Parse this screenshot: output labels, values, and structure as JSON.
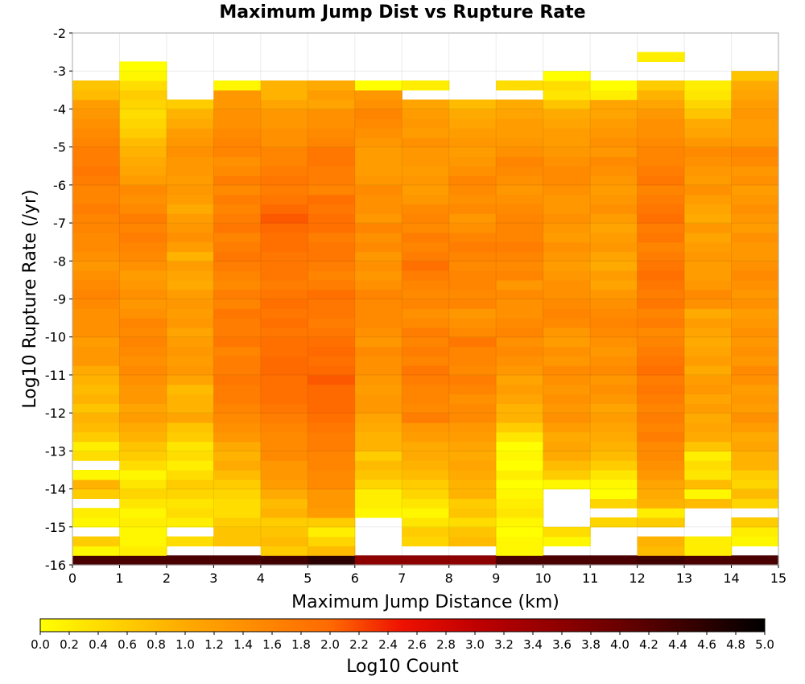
{
  "chart_data": {
    "type": "heatmap",
    "title": "Maximum Jump Dist vs Rupture Rate",
    "xlabel": "Maximum Jump Distance (km)",
    "ylabel": "Log10 Rupture Rate (/yr)",
    "xlim": [
      0,
      15
    ],
    "ylim": [
      -16,
      -2
    ],
    "x_ticks": [
      "0",
      "1",
      "2",
      "3",
      "4",
      "5",
      "6",
      "7",
      "8",
      "9",
      "10",
      "11",
      "12",
      "13",
      "14",
      "15"
    ],
    "y_ticks": [
      "-2",
      "-3",
      "-4",
      "-5",
      "-6",
      "-7",
      "-8",
      "-9",
      "-10",
      "-11",
      "-12",
      "-13",
      "-14",
      "-15",
      "-16"
    ],
    "x_bin_width": 1,
    "y_bin_height": 0.25,
    "y_bin_start": -16,
    "grid": true,
    "colorbar": {
      "label": "Log10 Count",
      "range": [
        0.0,
        5.0
      ],
      "ticks": [
        "0.0",
        "0.2",
        "0.4",
        "0.6",
        "0.8",
        "1.0",
        "1.2",
        "1.4",
        "1.6",
        "1.8",
        "2.0",
        "2.2",
        "2.4",
        "2.6",
        "2.8",
        "3.0",
        "3.2",
        "3.4",
        "3.6",
        "3.8",
        "4.0",
        "4.2",
        "4.4",
        "4.6",
        "4.8",
        "5.0"
      ],
      "stops": [
        {
          "v": 0.0,
          "color": "#ffff00"
        },
        {
          "v": 1.0,
          "color": "#ffaa00"
        },
        {
          "v": 2.0,
          "color": "#ff6a00"
        },
        {
          "v": 2.5,
          "color": "#ee1100"
        },
        {
          "v": 3.0,
          "color": "#c00000"
        },
        {
          "v": 4.0,
          "color": "#6a0000"
        },
        {
          "v": 5.0,
          "color": "#000000"
        }
      ]
    },
    "columns": [
      {
        "x": 0,
        "values": [
          4.3,
          0.1,
          0.6,
          null,
          0.1,
          0.2,
          null,
          0.6,
          0.9,
          0.1,
          null,
          0.4,
          0.2,
          0.6,
          0.8,
          0.9,
          0.7,
          0.9,
          0.8,
          0.9,
          1.0,
          1.3,
          1.3,
          1.2,
          1.4,
          1.4,
          1.4,
          1.5,
          1.6,
          1.5,
          1.4,
          1.3,
          1.4,
          1.5,
          1.5,
          1.6,
          1.6,
          1.7,
          1.6,
          1.6,
          1.7,
          1.8,
          1.7,
          1.7,
          1.6,
          1.5,
          1.4,
          1.3,
          1.2,
          0.8,
          0.7,
          null,
          null,
          null,
          null,
          null
        ]
      },
      {
        "x": 1,
        "values": [
          4.3,
          0.2,
          0.1,
          0.1,
          0.2,
          0.1,
          0.3,
          0.5,
          0.3,
          0.1,
          0.4,
          0.6,
          0.7,
          0.9,
          1.0,
          1.2,
          1.1,
          1.3,
          1.3,
          1.4,
          1.5,
          1.4,
          1.5,
          1.6,
          1.5,
          1.6,
          1.4,
          1.3,
          1.4,
          1.3,
          1.2,
          1.4,
          1.5,
          1.6,
          1.7,
          1.6,
          1.7,
          1.5,
          1.4,
          1.5,
          1.2,
          1.1,
          1.0,
          0.9,
          0.8,
          0.6,
          0.5,
          0.4,
          0.5,
          0.6,
          0.4,
          0.1,
          0.0,
          null,
          null,
          null
        ]
      },
      {
        "x": 2,
        "values": [
          4.3,
          null,
          0.4,
          null,
          0.2,
          0.4,
          0.3,
          0.5,
          0.6,
          0.4,
          0.2,
          0.4,
          0.3,
          0.6,
          0.7,
          1.1,
          0.9,
          0.9,
          0.8,
          1.1,
          1.3,
          1.2,
          1.3,
          1.2,
          1.1,
          1.3,
          1.2,
          1.3,
          1.2,
          1.0,
          1.1,
          1.2,
          0.9,
          1.2,
          1.4,
          1.3,
          1.2,
          1.0,
          1.2,
          1.3,
          1.2,
          1.3,
          1.3,
          1.4,
          1.3,
          1.2,
          1.0,
          0.9,
          0.6,
          null,
          null,
          null,
          null,
          null,
          null,
          null
        ]
      },
      {
        "x": 3,
        "values": [
          4.3,
          null,
          0.7,
          0.7,
          0.6,
          0.4,
          0.4,
          0.5,
          0.6,
          0.8,
          1.0,
          0.9,
          1.0,
          1.3,
          1.4,
          1.5,
          1.6,
          1.7,
          1.7,
          1.8,
          1.7,
          1.7,
          1.6,
          1.8,
          1.7,
          1.7,
          1.8,
          1.6,
          1.7,
          1.5,
          1.6,
          1.7,
          1.8,
          1.7,
          1.6,
          1.8,
          1.7,
          1.6,
          1.7,
          1.5,
          1.7,
          1.5,
          1.4,
          1.6,
          1.6,
          1.5,
          1.4,
          1.4,
          1.3,
          1.3,
          0.1,
          null,
          null,
          null,
          null,
          null
        ]
      },
      {
        "x": 4,
        "values": [
          4.4,
          0.6,
          0.8,
          0.7,
          0.6,
          0.9,
          0.8,
          1.0,
          1.2,
          1.3,
          1.3,
          1.5,
          1.5,
          1.5,
          1.6,
          1.7,
          1.8,
          1.9,
          1.9,
          1.9,
          2.0,
          2.0,
          1.9,
          1.9,
          1.8,
          1.9,
          1.8,
          1.9,
          1.8,
          1.7,
          1.8,
          1.8,
          1.8,
          1.9,
          1.9,
          2.0,
          2.1,
          2.0,
          1.8,
          1.7,
          1.8,
          1.7,
          1.6,
          1.6,
          1.4,
          1.4,
          1.3,
          1.3,
          1.1,
          0.9,
          0.9,
          null,
          null,
          null,
          null,
          null
        ]
      },
      {
        "x": 5,
        "values": [
          4.6,
          0.8,
          0.5,
          0.2,
          0.6,
          1.2,
          1.3,
          1.3,
          1.5,
          1.5,
          1.6,
          1.6,
          1.7,
          1.7,
          1.8,
          1.9,
          2.0,
          2.0,
          2.0,
          2.1,
          2.0,
          1.9,
          2.0,
          1.9,
          1.8,
          1.7,
          1.8,
          1.8,
          1.9,
          1.7,
          1.6,
          1.7,
          1.8,
          1.8,
          1.7,
          1.9,
          1.9,
          1.8,
          1.9,
          1.6,
          1.7,
          1.7,
          1.8,
          1.8,
          1.6,
          1.5,
          1.4,
          1.4,
          1.1,
          1.2,
          1.0,
          null,
          null,
          null,
          null,
          null
        ]
      },
      {
        "x": 6,
        "values": [
          3.6,
          null,
          null,
          null,
          null,
          0.1,
          0.2,
          0.2,
          0.5,
          0.7,
          0.8,
          0.6,
          0.9,
          0.9,
          1.0,
          1.1,
          1.3,
          1.3,
          1.2,
          1.3,
          1.4,
          1.4,
          1.5,
          1.3,
          1.4,
          1.5,
          1.5,
          1.5,
          1.6,
          1.4,
          1.3,
          1.4,
          1.3,
          1.5,
          1.4,
          1.6,
          1.3,
          1.4,
          1.4,
          1.5,
          1.3,
          1.2,
          1.2,
          1.2,
          1.3,
          1.4,
          1.5,
          1.6,
          1.4,
          1.3,
          0.0,
          null,
          null,
          null,
          null,
          null
        ]
      },
      {
        "x": 7,
        "values": [
          3.6,
          null,
          0.5,
          0.6,
          0.3,
          0.1,
          0.3,
          0.5,
          0.6,
          0.8,
          0.9,
          1.0,
          1.0,
          1.2,
          1.3,
          1.7,
          1.5,
          1.6,
          1.6,
          1.7,
          1.8,
          1.6,
          1.7,
          1.6,
          1.7,
          1.5,
          1.4,
          1.6,
          1.5,
          1.6,
          1.7,
          1.9,
          1.7,
          1.6,
          1.7,
          1.5,
          1.6,
          1.5,
          1.3,
          1.2,
          1.3,
          1.2,
          1.3,
          1.3,
          1.4,
          1.2,
          1.3,
          1.2,
          1.1,
          null,
          0.2,
          null,
          null,
          null,
          null,
          null
        ]
      },
      {
        "x": 8,
        "values": [
          3.6,
          null,
          0.8,
          0.7,
          0.4,
          0.7,
          0.6,
          0.9,
          0.9,
          1.0,
          1.1,
          1.0,
          1.1,
          1.2,
          1.3,
          1.5,
          1.5,
          1.4,
          1.6,
          1.7,
          1.5,
          1.6,
          1.6,
          1.8,
          1.5,
          1.4,
          1.3,
          1.6,
          1.5,
          1.6,
          1.6,
          1.5,
          1.6,
          1.7,
          1.6,
          1.4,
          1.3,
          1.5,
          1.4,
          1.5,
          1.6,
          1.4,
          1.3,
          1.2,
          1.3,
          1.2,
          1.1,
          1.0,
          0.8,
          null,
          null,
          null,
          null,
          null,
          null,
          null
        ]
      },
      {
        "x": 9,
        "values": [
          4.3,
          0.1,
          0.1,
          0.0,
          0.1,
          0.3,
          0.2,
          0.1,
          0.0,
          0.2,
          0.0,
          0.1,
          0.0,
          0.3,
          0.6,
          0.9,
          0.9,
          1.1,
          1.2,
          1.1,
          1.3,
          1.4,
          1.5,
          1.4,
          1.6,
          1.5,
          1.4,
          1.4,
          1.5,
          1.3,
          1.6,
          1.5,
          1.6,
          1.7,
          1.6,
          1.6,
          1.6,
          1.5,
          1.4,
          1.3,
          1.4,
          1.5,
          1.6,
          1.4,
          1.3,
          1.2,
          1.2,
          1.1,
          1.0,
          null,
          0.4,
          null,
          null,
          null,
          null,
          null
        ]
      },
      {
        "x": 10,
        "values": [
          4.3,
          null,
          0.1,
          0.4,
          null,
          null,
          null,
          null,
          0.1,
          0.6,
          0.8,
          1.0,
          1.1,
          1.0,
          1.2,
          1.4,
          1.3,
          1.4,
          1.3,
          1.4,
          1.5,
          1.3,
          1.4,
          1.2,
          1.3,
          1.5,
          1.6,
          1.5,
          1.4,
          1.4,
          1.3,
          1.2,
          1.3,
          1.4,
          1.2,
          1.3,
          1.4,
          1.3,
          1.3,
          1.4,
          1.5,
          1.5,
          1.4,
          1.3,
          1.2,
          1.2,
          1.1,
          1.0,
          0.7,
          0.3,
          0.4,
          0.0,
          null,
          null,
          null,
          null
        ]
      },
      {
        "x": 11,
        "values": [
          4.3,
          null,
          null,
          null,
          0.5,
          null,
          0.5,
          0.0,
          0.1,
          0.3,
          0.6,
          0.8,
          0.9,
          1.0,
          1.1,
          1.2,
          1.1,
          1.3,
          1.4,
          1.3,
          1.5,
          1.4,
          1.3,
          1.4,
          1.5,
          1.6,
          1.5,
          1.4,
          1.3,
          1.1,
          1.2,
          1.0,
          1.1,
          1.3,
          1.2,
          1.1,
          1.2,
          1.4,
          1.3,
          1.2,
          1.3,
          1.4,
          1.5,
          1.3,
          1.4,
          1.3,
          1.2,
          1.1,
          1.1,
          0.2,
          0.0,
          null,
          null,
          null,
          null,
          null
        ]
      },
      {
        "x": 12,
        "values": [
          4.4,
          0.8,
          0.9,
          null,
          0.6,
          0.2,
          0.9,
          1.0,
          1.1,
          1.3,
          1.4,
          1.5,
          1.5,
          1.7,
          1.6,
          1.7,
          1.6,
          1.7,
          1.8,
          1.7,
          1.9,
          1.8,
          1.7,
          1.6,
          1.5,
          1.7,
          1.6,
          1.8,
          1.7,
          1.8,
          1.9,
          1.8,
          1.7,
          1.6,
          1.8,
          1.7,
          1.9,
          1.8,
          1.7,
          1.6,
          1.8,
          1.7,
          1.6,
          1.6,
          1.5,
          1.4,
          1.4,
          1.3,
          1.1,
          0.9,
          0.6,
          null,
          null,
          0.2,
          null,
          null
        ]
      },
      {
        "x": 13,
        "values": [
          4.3,
          0.2,
          0.2,
          null,
          null,
          null,
          0.8,
          0.1,
          0.8,
          0.3,
          0.4,
          0.2,
          0.7,
          1.0,
          1.1,
          1.0,
          1.2,
          1.1,
          1.3,
          1.2,
          1.0,
          1.2,
          1.1,
          1.0,
          1.1,
          1.2,
          1.0,
          1.4,
          1.5,
          1.3,
          1.2,
          1.2,
          1.3,
          1.2,
          1.1,
          1.3,
          1.0,
          1.1,
          1.2,
          1.4,
          1.2,
          1.3,
          1.4,
          1.5,
          1.3,
          1.1,
          1.0,
          0.7,
          0.5,
          0.3,
          0.2,
          null,
          null,
          null,
          null,
          null
        ]
      },
      {
        "x": 14,
        "values": [
          4.3,
          null,
          0.1,
          0.2,
          0.6,
          null,
          0.5,
          0.8,
          0.5,
          0.6,
          0.9,
          0.9,
          1.1,
          1.0,
          1.2,
          1.4,
          1.2,
          1.3,
          1.2,
          1.4,
          1.5,
          1.3,
          1.4,
          1.3,
          1.4,
          1.3,
          1.2,
          1.4,
          1.3,
          1.4,
          1.5,
          1.4,
          1.3,
          1.3,
          1.4,
          1.2,
          1.3,
          1.4,
          1.3,
          1.2,
          1.4,
          1.3,
          1.5,
          1.6,
          1.3,
          1.2,
          1.2,
          1.3,
          1.2,
          1.1,
          1.0,
          0.7,
          null,
          null,
          null,
          null
        ]
      }
    ]
  }
}
